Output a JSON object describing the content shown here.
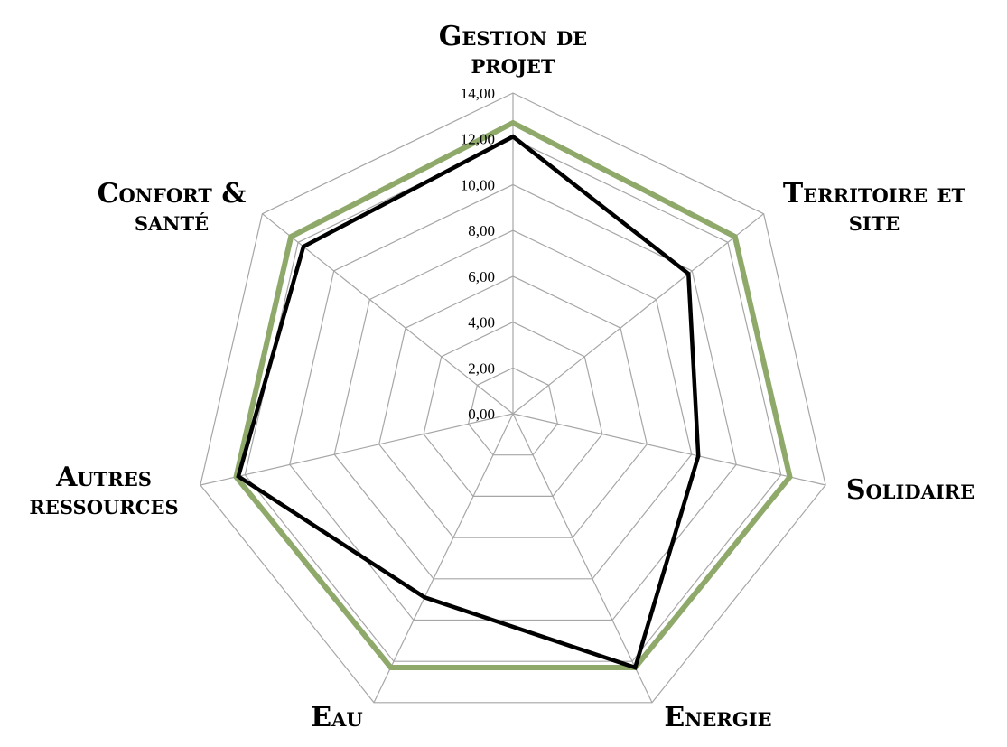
{
  "chart_data": {
    "type": "radar",
    "axes": [
      [
        "Gestion de",
        "projet"
      ],
      [
        "Territoire et",
        "site"
      ],
      [
        "Solidaire"
      ],
      [
        "Energie"
      ],
      [
        "Eau"
      ],
      [
        "Autres",
        "ressources"
      ],
      [
        "Confort &",
        "santé"
      ]
    ],
    "rlim": [
      0,
      14
    ],
    "ticks": [
      "0,00",
      "2,00",
      "4,00",
      "6,00",
      "8,00",
      "10,00",
      "12,00",
      "14,00"
    ],
    "grid": true,
    "series": [
      {
        "color": "#8ea96a",
        "values": [
          12.7,
          12.4,
          12.4,
          12.3,
          12.3,
          12.4,
          12.4
        ]
      },
      {
        "color": "#000000",
        "values": [
          12.1,
          9.8,
          8.3,
          12.3,
          8.9,
          12.3,
          11.7
        ]
      }
    ]
  }
}
